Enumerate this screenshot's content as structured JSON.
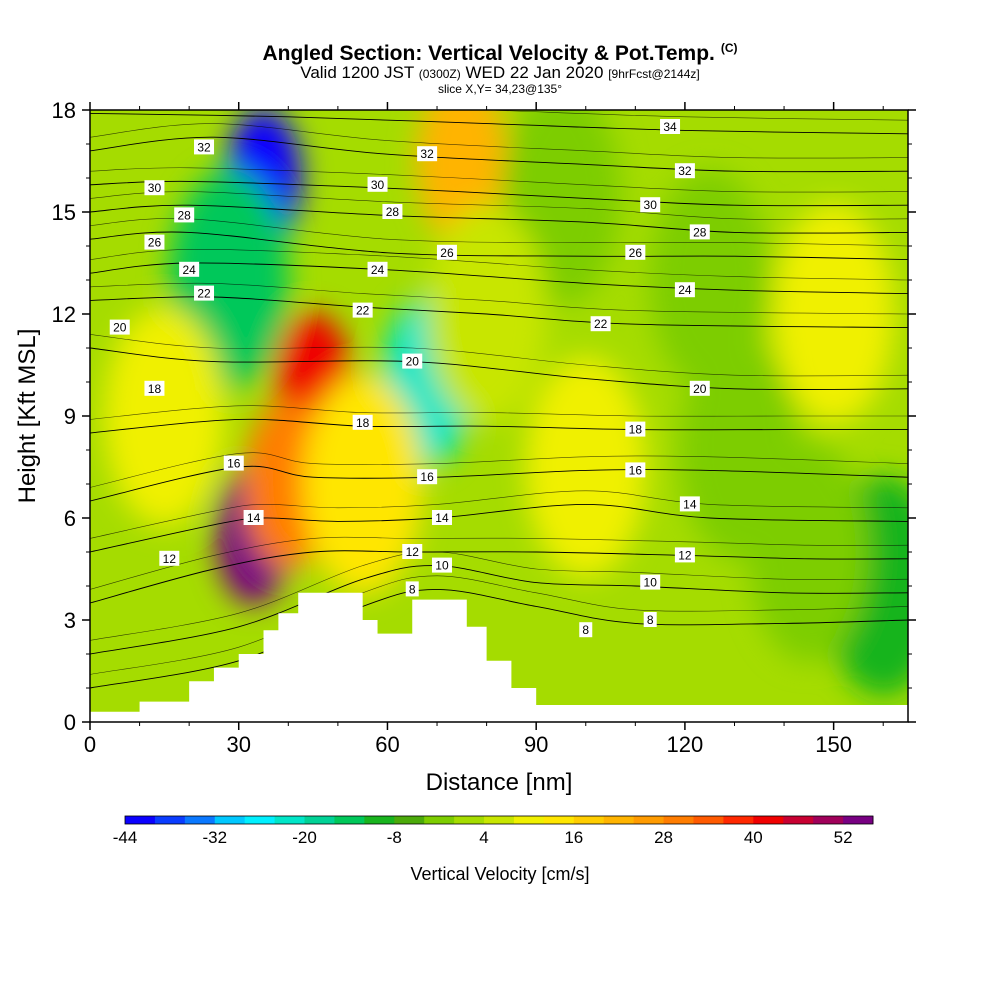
{
  "title": {
    "main": "Angled Section: Vertical Velocity & Pot.Temp.",
    "main_suffix": "(C)",
    "valid_prefix": "Valid 1200 JST",
    "zulu": "(0300Z)",
    "valid_date": "WED 22 Jan 2020",
    "forecast": "[9hrFcst@2144z]",
    "slice": "slice X,Y= 34,23@135°"
  },
  "chart_data": {
    "type": "heatmap",
    "xlabel": "Distance [nm]",
    "ylabel": "Height [Kft MSL]",
    "xlim": [
      0,
      165
    ],
    "ylim": [
      0,
      18
    ],
    "xticks": [
      "0",
      "30",
      "60",
      "90",
      "120",
      "150"
    ],
    "yticks": [
      "0",
      "3",
      "6",
      "9",
      "12",
      "15",
      "18"
    ],
    "terrain_kft": [
      [
        0,
        0.3
      ],
      [
        10,
        0.6
      ],
      [
        20,
        1.2
      ],
      [
        25,
        1.6
      ],
      [
        30,
        2.0
      ],
      [
        35,
        2.7
      ],
      [
        38,
        3.2
      ],
      [
        42,
        3.8
      ],
      [
        50,
        3.8
      ],
      [
        55,
        3.0
      ],
      [
        58,
        2.6
      ],
      [
        62,
        2.6
      ],
      [
        65,
        3.6
      ],
      [
        72,
        3.6
      ],
      [
        76,
        2.8
      ],
      [
        80,
        1.8
      ],
      [
        85,
        1.0
      ],
      [
        90,
        0.5
      ],
      [
        165,
        0.3
      ]
    ],
    "color_scale": {
      "title": "Vertical Velocity [cm/s]",
      "min": -44,
      "max": 56,
      "step": 4,
      "tick_labels": [
        "-44",
        "-32",
        "-20",
        "-8",
        "4",
        "16",
        "28",
        "40",
        "52"
      ],
      "colors": [
        "#0b00ff",
        "#0a3cff",
        "#0a78ff",
        "#00c8ff",
        "#00f0ff",
        "#00e6c8",
        "#00d296",
        "#00c85a",
        "#19b41e",
        "#4baa0a",
        "#7dcd00",
        "#a5dc00",
        "#c8e600",
        "#f0f000",
        "#ffe600",
        "#ffcd00",
        "#ffb400",
        "#ff9b00",
        "#ff7d00",
        "#ff5a00",
        "#ff2800",
        "#f00000",
        "#c80032",
        "#a0005a",
        "#780082"
      ]
    },
    "velocity_features": [
      {
        "x": 35,
        "y": 16.0,
        "value": -44
      },
      {
        "x": 28,
        "y": 13.0,
        "value": -16
      },
      {
        "x": 68,
        "y": 10.0,
        "value": -24
      },
      {
        "x": 33,
        "y": 5.5,
        "value": 56
      },
      {
        "x": 45,
        "y": 10.0,
        "value": 40
      },
      {
        "x": 40,
        "y": 7.0,
        "value": 28
      },
      {
        "x": 75,
        "y": 16.5,
        "value": 20
      },
      {
        "x": 100,
        "y": 7.5,
        "value": 8
      },
      {
        "x": 150,
        "y": 12.0,
        "value": 8
      },
      {
        "x": 125,
        "y": 13.0,
        "value": -4
      },
      {
        "x": 160,
        "y": 4.0,
        "value": -12
      },
      {
        "x": 145,
        "y": 5.0,
        "value": -4
      },
      {
        "x": 131,
        "y": 8.0,
        "value": -4
      },
      {
        "x": 95,
        "y": 15.5,
        "value": -4
      },
      {
        "x": 15,
        "y": 9.0,
        "value": 8
      },
      {
        "x": 55,
        "y": 7.0,
        "value": 14
      },
      {
        "x": 80,
        "y": 12.0,
        "value": 4
      }
    ],
    "isentropes": [
      {
        "theta": 8,
        "levels": [
          [
            0,
            1.0
          ],
          [
            30,
            1.8
          ],
          [
            55,
            3.4
          ],
          [
            70,
            3.9
          ],
          [
            90,
            3.4
          ],
          [
            110,
            2.9
          ],
          [
            140,
            2.9
          ],
          [
            165,
            3.0
          ]
        ]
      },
      {
        "theta": 10,
        "levels": [
          [
            0,
            2.0
          ],
          [
            30,
            2.8
          ],
          [
            55,
            4.2
          ],
          [
            70,
            4.6
          ],
          [
            90,
            4.1
          ],
          [
            110,
            4.0
          ],
          [
            140,
            3.8
          ],
          [
            165,
            3.8
          ]
        ]
      },
      {
        "theta": 12,
        "levels": [
          [
            0,
            3.5
          ],
          [
            25,
            4.5
          ],
          [
            45,
            5.0
          ],
          [
            65,
            5.0
          ],
          [
            90,
            5.0
          ],
          [
            120,
            4.9
          ],
          [
            145,
            4.8
          ],
          [
            165,
            4.8
          ]
        ]
      },
      {
        "theta": 14,
        "levels": [
          [
            0,
            5.0
          ],
          [
            25,
            5.8
          ],
          [
            35,
            6.0
          ],
          [
            50,
            5.9
          ],
          [
            70,
            6.0
          ],
          [
            100,
            6.4
          ],
          [
            125,
            6.0
          ],
          [
            165,
            5.9
          ]
        ]
      },
      {
        "theta": 16,
        "levels": [
          [
            0,
            6.5
          ],
          [
            30,
            7.5
          ],
          [
            45,
            7.2
          ],
          [
            70,
            7.2
          ],
          [
            100,
            7.4
          ],
          [
            125,
            7.4
          ],
          [
            165,
            7.2
          ]
        ]
      },
      {
        "theta": 18,
        "levels": [
          [
            0,
            8.5
          ],
          [
            30,
            8.9
          ],
          [
            55,
            8.7
          ],
          [
            80,
            8.7
          ],
          [
            110,
            8.6
          ],
          [
            140,
            8.6
          ],
          [
            165,
            8.6
          ]
        ]
      },
      {
        "theta": 20,
        "levels": [
          [
            0,
            11.0
          ],
          [
            25,
            10.6
          ],
          [
            65,
            10.6
          ],
          [
            100,
            10.1
          ],
          [
            130,
            9.8
          ],
          [
            165,
            9.8
          ]
        ]
      },
      {
        "theta": 22,
        "levels": [
          [
            0,
            12.4
          ],
          [
            25,
            12.5
          ],
          [
            55,
            12.2
          ],
          [
            80,
            12.0
          ],
          [
            110,
            11.7
          ],
          [
            165,
            11.6
          ]
        ]
      },
      {
        "theta": 24,
        "levels": [
          [
            0,
            13.2
          ],
          [
            20,
            13.5
          ],
          [
            60,
            13.3
          ],
          [
            100,
            12.9
          ],
          [
            130,
            12.7
          ],
          [
            165,
            12.6
          ]
        ]
      },
      {
        "theta": 26,
        "levels": [
          [
            0,
            14.2
          ],
          [
            20,
            14.4
          ],
          [
            60,
            13.8
          ],
          [
            100,
            13.7
          ],
          [
            130,
            13.7
          ],
          [
            165,
            13.6
          ]
        ]
      },
      {
        "theta": 28,
        "levels": [
          [
            0,
            15.0
          ],
          [
            20,
            15.2
          ],
          [
            60,
            14.9
          ],
          [
            100,
            14.7
          ],
          [
            130,
            14.4
          ],
          [
            165,
            14.4
          ]
        ]
      },
      {
        "theta": 30,
        "levels": [
          [
            0,
            15.8
          ],
          [
            20,
            15.9
          ],
          [
            60,
            15.7
          ],
          [
            100,
            15.4
          ],
          [
            130,
            15.2
          ],
          [
            165,
            15.2
          ]
        ]
      },
      {
        "theta": 32,
        "levels": [
          [
            0,
            16.8
          ],
          [
            25,
            17.2
          ],
          [
            60,
            16.7
          ],
          [
            100,
            16.4
          ],
          [
            130,
            16.2
          ],
          [
            165,
            16.2
          ]
        ]
      },
      {
        "theta": 34,
        "levels": [
          [
            0,
            17.9
          ],
          [
            40,
            17.8
          ],
          [
            80,
            17.6
          ],
          [
            120,
            17.4
          ],
          [
            165,
            17.3
          ]
        ]
      }
    ],
    "contour_labels": [
      {
        "text": "32",
        "x": 23,
        "y": 16.9
      },
      {
        "text": "30",
        "x": 13,
        "y": 15.7
      },
      {
        "text": "28",
        "x": 19,
        "y": 14.9
      },
      {
        "text": "26",
        "x": 13,
        "y": 14.1
      },
      {
        "text": "24",
        "x": 20,
        "y": 13.3
      },
      {
        "text": "22",
        "x": 23,
        "y": 12.6
      },
      {
        "text": "20",
        "x": 6,
        "y": 11.6
      },
      {
        "text": "18",
        "x": 13,
        "y": 9.8
      },
      {
        "text": "16",
        "x": 29,
        "y": 7.6
      },
      {
        "text": "14",
        "x": 33,
        "y": 6.0
      },
      {
        "text": "12",
        "x": 16,
        "y": 4.8
      },
      {
        "text": "32",
        "x": 68,
        "y": 16.7
      },
      {
        "text": "30",
        "x": 58,
        "y": 15.8
      },
      {
        "text": "28",
        "x": 61,
        "y": 15.0
      },
      {
        "text": "26",
        "x": 72,
        "y": 13.8
      },
      {
        "text": "24",
        "x": 58,
        "y": 13.3
      },
      {
        "text": "22",
        "x": 55,
        "y": 12.1
      },
      {
        "text": "20",
        "x": 65,
        "y": 10.6
      },
      {
        "text": "18",
        "x": 55,
        "y": 8.8
      },
      {
        "text": "16",
        "x": 68,
        "y": 7.2
      },
      {
        "text": "14",
        "x": 71,
        "y": 6.0
      },
      {
        "text": "12",
        "x": 65,
        "y": 5.0
      },
      {
        "text": "10",
        "x": 71,
        "y": 4.6
      },
      {
        "text": "8",
        "x": 65,
        "y": 3.9
      },
      {
        "text": "34",
        "x": 117,
        "y": 17.5
      },
      {
        "text": "32",
        "x": 120,
        "y": 16.2
      },
      {
        "text": "30",
        "x": 113,
        "y": 15.2
      },
      {
        "text": "28",
        "x": 123,
        "y": 14.4
      },
      {
        "text": "26",
        "x": 110,
        "y": 13.8
      },
      {
        "text": "24",
        "x": 120,
        "y": 12.7
      },
      {
        "text": "22",
        "x": 103,
        "y": 11.7
      },
      {
        "text": "20",
        "x": 123,
        "y": 9.8
      },
      {
        "text": "18",
        "x": 110,
        "y": 8.6
      },
      {
        "text": "16",
        "x": 110,
        "y": 7.4
      },
      {
        "text": "14",
        "x": 121,
        "y": 6.4
      },
      {
        "text": "12",
        "x": 120,
        "y": 4.9
      },
      {
        "text": "10",
        "x": 113,
        "y": 4.1
      },
      {
        "text": "8",
        "x": 113,
        "y": 3.0
      },
      {
        "text": "8",
        "x": 100,
        "y": 2.7
      }
    ]
  }
}
